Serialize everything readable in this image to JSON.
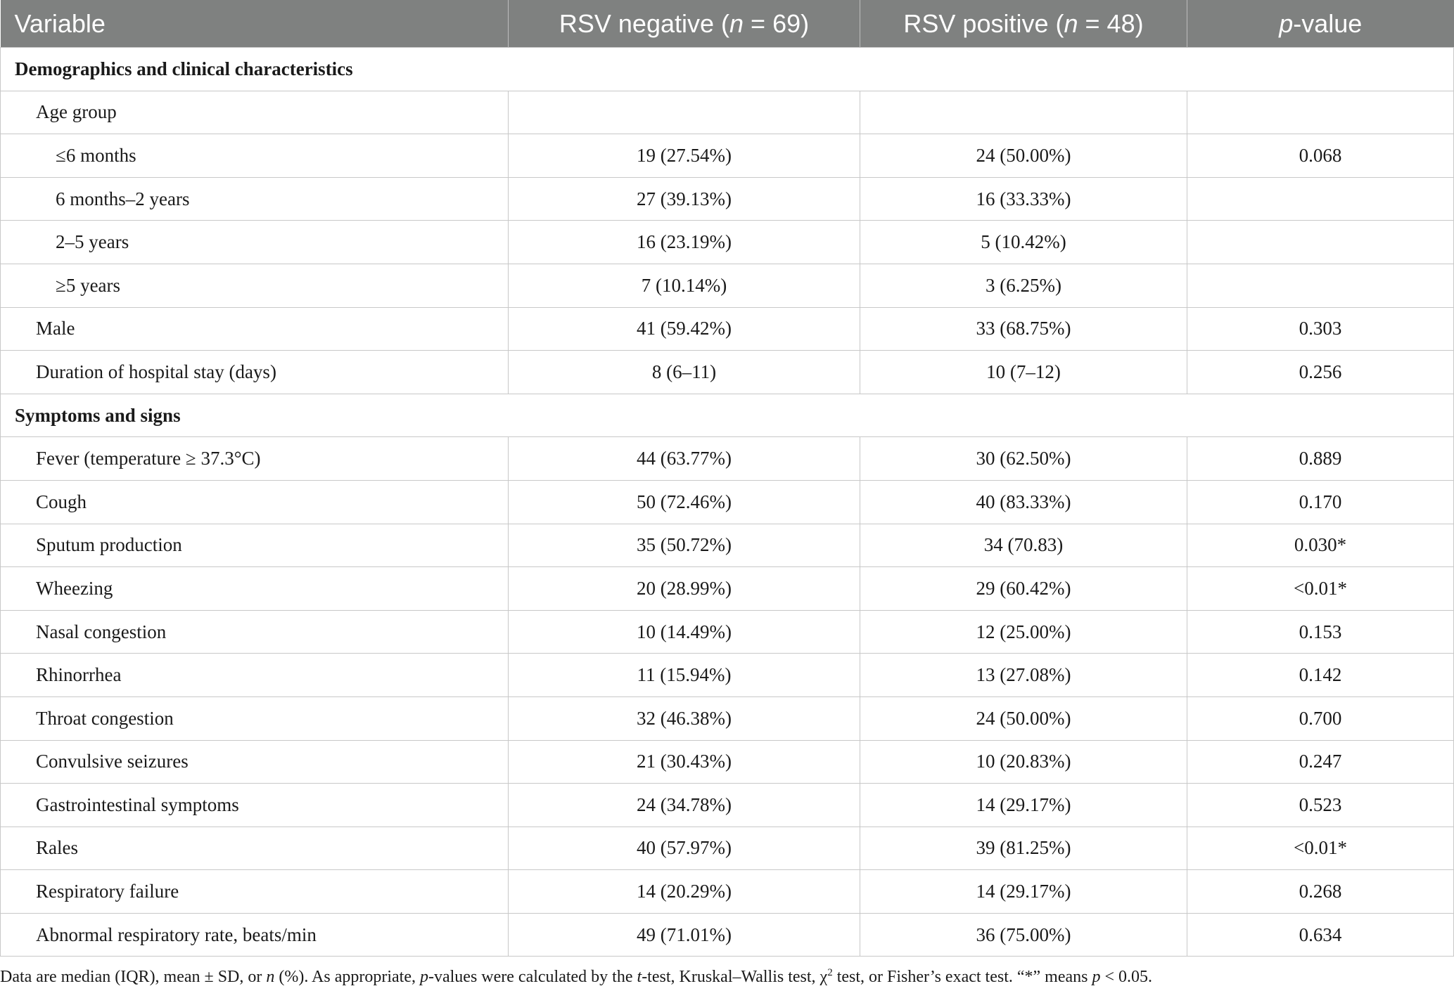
{
  "header": {
    "variable": "Variable",
    "rsv_negative_pre": "RSV negative (",
    "rsv_negative_n": "n",
    "rsv_negative_post": " = 69)",
    "rsv_positive_pre": "RSV positive (",
    "rsv_positive_n": "n",
    "rsv_positive_post": " = 48)",
    "p_italic": "p",
    "p_rest": "-value"
  },
  "sections": {
    "demographics": "Demographics and clinical characteristics",
    "symptoms": "Symptoms and signs"
  },
  "rows": [
    {
      "label": "Age group",
      "neg": "",
      "pos": "",
      "p": ""
    },
    {
      "label": "≤6 months",
      "neg": "19 (27.54%)",
      "pos": "24 (50.00%)",
      "p": "0.068"
    },
    {
      "label": "6 months–2 years",
      "neg": "27 (39.13%)",
      "pos": "16 (33.33%)",
      "p": ""
    },
    {
      "label": "2–5 years",
      "neg": "16 (23.19%)",
      "pos": "5 (10.42%)",
      "p": ""
    },
    {
      "label": "≥5 years",
      "neg": "7 (10.14%)",
      "pos": "3 (6.25%)",
      "p": ""
    },
    {
      "label": "Male",
      "neg": "41 (59.42%)",
      "pos": "33 (68.75%)",
      "p": "0.303"
    },
    {
      "label": "Duration of hospital stay (days)",
      "neg": "8 (6–11)",
      "pos": "10 (7–12)",
      "p": "0.256"
    },
    {
      "label": "Fever (temperature ≥ 37.3°C)",
      "neg": "44 (63.77%)",
      "pos": "30 (62.50%)",
      "p": "0.889"
    },
    {
      "label": "Cough",
      "neg": "50 (72.46%)",
      "pos": "40 (83.33%)",
      "p": "0.170"
    },
    {
      "label": "Sputum production",
      "neg": "35 (50.72%)",
      "pos": "34 (70.83)",
      "p": "0.030*"
    },
    {
      "label": "Wheezing",
      "neg": "20 (28.99%)",
      "pos": "29 (60.42%)",
      "p": "<0.01*"
    },
    {
      "label": "Nasal congestion",
      "neg": "10 (14.49%)",
      "pos": "12 (25.00%)",
      "p": "0.153"
    },
    {
      "label": "Rhinorrhea",
      "neg": "11 (15.94%)",
      "pos": "13 (27.08%)",
      "p": "0.142"
    },
    {
      "label": "Throat congestion",
      "neg": "32 (46.38%)",
      "pos": "24 (50.00%)",
      "p": "0.700"
    },
    {
      "label": "Convulsive seizures",
      "neg": "21 (30.43%)",
      "pos": "10 (20.83%)",
      "p": "0.247"
    },
    {
      "label": "Gastrointestinal symptoms",
      "neg": "24 (34.78%)",
      "pos": "14 (29.17%)",
      "p": "0.523"
    },
    {
      "label": "Rales",
      "neg": "40 (57.97%)",
      "pos": "39 (81.25%)",
      "p": "<0.01*"
    },
    {
      "label": "Respiratory failure",
      "neg": "14 (20.29%)",
      "pos": "14 (29.17%)",
      "p": "0.268"
    },
    {
      "label": "Abnormal respiratory rate, beats/min",
      "neg": "49 (71.01%)",
      "pos": "36 (75.00%)",
      "p": "0.634"
    }
  ],
  "footnote": {
    "part1": "Data are median (IQR), mean ± SD, or ",
    "n": "n",
    "part2": " (%). As appropriate, ",
    "p1": "p",
    "part3": "-values were calculated by the ",
    "t": "t",
    "part4": "-test, Kruskal–Wallis test, χ",
    "sup": "2",
    "part5": " test, or Fisher’s exact test. “*” means ",
    "p2": "p",
    "part6": " < 0.05."
  }
}
